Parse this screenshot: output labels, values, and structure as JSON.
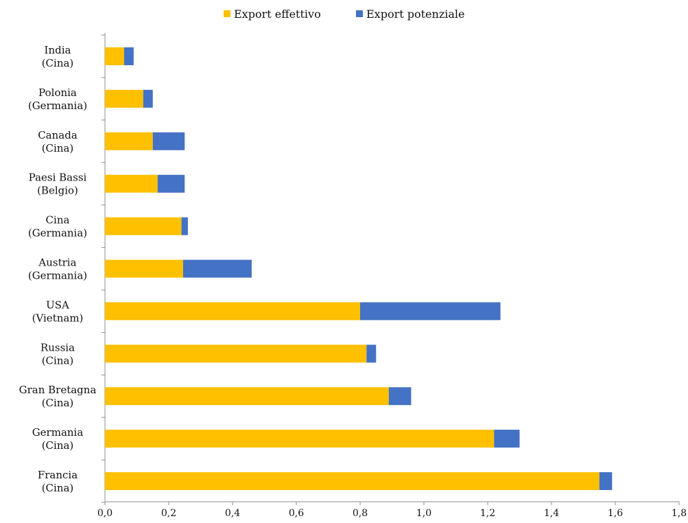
{
  "chart_data": {
    "type": "bar",
    "orientation": "horizontal",
    "stacked": true,
    "categories": [
      [
        "India",
        "(Cina)"
      ],
      [
        "Polonia",
        "(Germania)"
      ],
      [
        "Canada",
        "(Cina)"
      ],
      [
        "Paesi Bassi",
        "(Belgio)"
      ],
      [
        "Cina",
        "(Germania)"
      ],
      [
        "Austria",
        "(Germania)"
      ],
      [
        "USA",
        "(Vietnam)"
      ],
      [
        "Russia",
        "(Cina)"
      ],
      [
        "Gran Bretagna",
        "(Cina)"
      ],
      [
        "Germania",
        "(Cina)"
      ],
      [
        "Francia",
        "(Cina)"
      ]
    ],
    "series": [
      {
        "name": "Export effettivo",
        "color": "#ffc000",
        "values": [
          0.06,
          0.12,
          0.15,
          0.165,
          0.24,
          0.245,
          0.8,
          0.82,
          0.89,
          1.22,
          1.55
        ]
      },
      {
        "name": "Export potenziale",
        "color": "#4472c4",
        "values": [
          0.03,
          0.03,
          0.1,
          0.085,
          0.02,
          0.215,
          0.44,
          0.03,
          0.07,
          0.08,
          0.04
        ]
      }
    ],
    "xlim": [
      0,
      1.8
    ],
    "xticks": [
      0.0,
      0.2,
      0.4,
      0.6,
      0.8,
      1.0,
      1.2,
      1.4,
      1.6,
      1.8
    ],
    "xtick_labels": [
      "0,0",
      "0,2",
      "0,4",
      "0,6",
      "0,8",
      "1,0",
      "1,2",
      "1,4",
      "1,6",
      "1,8"
    ],
    "title": "",
    "xlabel": "",
    "ylabel": "",
    "grid": false,
    "legend_position": "top-center"
  }
}
